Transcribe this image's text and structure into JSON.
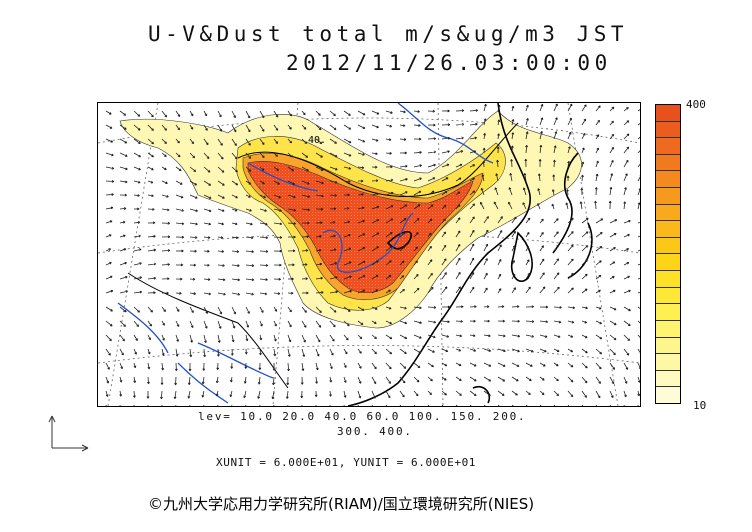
{
  "title": {
    "line1": "U-V&Dust total m/s&ug/m3 JST",
    "line2": "2012/11/26.03:00:00"
  },
  "colorbar": {
    "max_label": "400",
    "min_label": "10",
    "colors": [
      "#e8501e",
      "#ea5d1e",
      "#ee6a1e",
      "#f07a1e",
      "#f48a1e",
      "#f69a1e",
      "#f8aa1c",
      "#fab81a",
      "#fcc818",
      "#fdd418",
      "#fde028",
      "#fde838",
      "#fef050",
      "#fef470",
      "#fef68c",
      "#fef8a6",
      "#fefac0",
      "#fefcd6"
    ]
  },
  "legend": {
    "levels_line1": "lev= 10.0 20.0 40.0 60.0 100. 150. 200.",
    "levels_line2": "300. 400.",
    "units": "XUNIT = 6.000E+01, YUNIT = 6.000E+01"
  },
  "contour_label": "40.",
  "credit": "©九州大学応用力学研究所(RIAM)/国立環境研究所(NIES)",
  "colors": {
    "dust_max": "#e8501e",
    "dust_light": "#fef8b4",
    "coastline": "#000000",
    "rivers": "#2050d0"
  }
}
